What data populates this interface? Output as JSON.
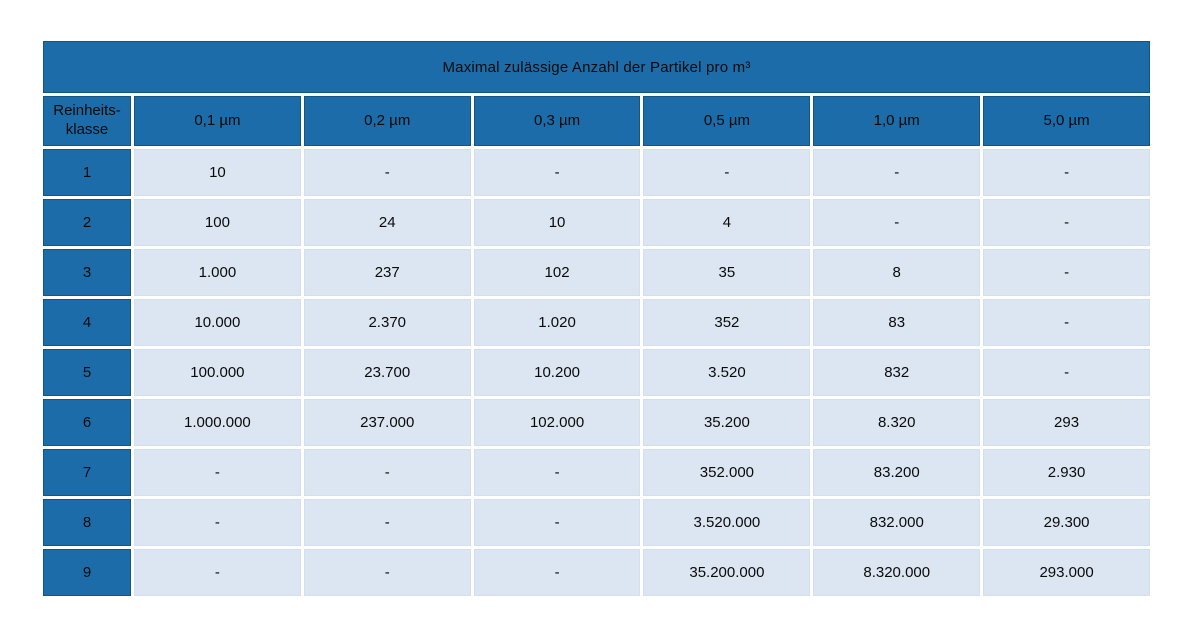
{
  "table": {
    "title": "Maximal zulässige Anzahl der Partikel pro m³",
    "row_header": {
      "line1": "Reinheits-",
      "line2": "klasse"
    },
    "columns": [
      "0,1 µm",
      "0,2 µm",
      "0,3 µm",
      "0,5 µm",
      "1,0 µm",
      "5,0 µm"
    ],
    "rows": [
      {
        "klasse": "1",
        "values": [
          "10",
          "-",
          "-",
          "-",
          "-",
          "-"
        ]
      },
      {
        "klasse": "2",
        "values": [
          "100",
          "24",
          "10",
          "4",
          "-",
          "-"
        ]
      },
      {
        "klasse": "3",
        "values": [
          "1.000",
          "237",
          "102",
          "35",
          "8",
          "-"
        ]
      },
      {
        "klasse": "4",
        "values": [
          "10.000",
          "2.370",
          "1.020",
          "352",
          "83",
          "-"
        ]
      },
      {
        "klasse": "5",
        "values": [
          "100.000",
          "23.700",
          "10.200",
          "3.520",
          "832",
          "-"
        ]
      },
      {
        "klasse": "6",
        "values": [
          "1.000.000",
          "237.000",
          "102.000",
          "35.200",
          "8.320",
          "293"
        ]
      },
      {
        "klasse": "7",
        "values": [
          "-",
          "-",
          "-",
          "352.000",
          "83.200",
          "2.930"
        ]
      },
      {
        "klasse": "8",
        "values": [
          "-",
          "-",
          "-",
          "3.520.000",
          "832.000",
          "29.300"
        ]
      },
      {
        "klasse": "9",
        "values": [
          "-",
          "-",
          "-",
          "35.200.000",
          "8.320.000",
          "293.000"
        ]
      }
    ],
    "colors": {
      "header_fill": "#1B6CA8",
      "header_border": "#14567F",
      "cell_fill": "#DCE6F2",
      "text": "#0A0A0A",
      "background": "#FFFFFF"
    }
  }
}
